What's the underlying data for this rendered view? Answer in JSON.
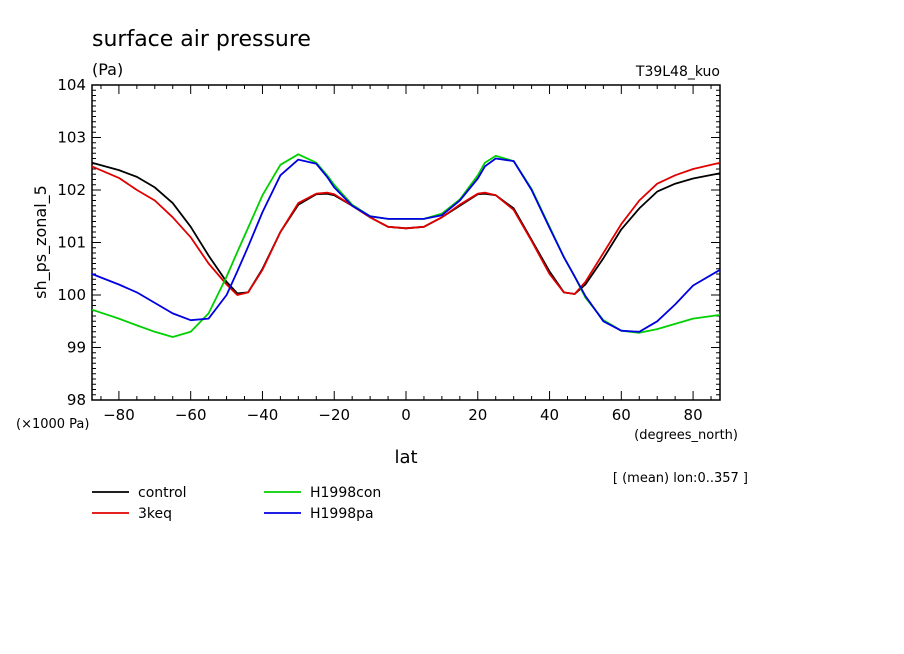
{
  "chart_data": {
    "type": "line",
    "title": "surface air pressure",
    "units": "(Pa)",
    "run_label": "T39L48_kuo",
    "ylabel": "sh_ps_zonal_5",
    "xlabel": "lat",
    "x_units": "(degrees_north)",
    "y_scale_note": "(×1000 Pa)",
    "averaging_note": "[ (mean) lon:0..357 ]",
    "xlim": [
      -87.5,
      87.5
    ],
    "ylim": [
      98,
      104
    ],
    "x_ticks": [
      -80,
      -60,
      -40,
      -20,
      0,
      20,
      40,
      60,
      80
    ],
    "x_tick_labels": [
      "−80",
      "−60",
      "−40",
      "−20",
      "0",
      "20",
      "40",
      "60",
      "80"
    ],
    "y_ticks": [
      98,
      99,
      100,
      101,
      102,
      103,
      104
    ],
    "y_tick_labels": [
      "98",
      "99",
      "100",
      "101",
      "102",
      "103",
      "104"
    ],
    "grid": false,
    "legend_position": "bottom-left",
    "x": [
      -87.5,
      -80,
      -75,
      -70,
      -65,
      -60,
      -55,
      -50,
      -47,
      -44,
      -40,
      -35,
      -30,
      -25,
      -22,
      -20,
      -15,
      -10,
      -5,
      0,
      5,
      10,
      15,
      20,
      22,
      25,
      30,
      35,
      40,
      44,
      47,
      50,
      55,
      60,
      65,
      70,
      75,
      80,
      87.5
    ],
    "series": [
      {
        "name": "control",
        "color": "#000000",
        "values": [
          102.52,
          102.38,
          102.25,
          102.05,
          101.75,
          101.3,
          100.75,
          100.25,
          100.03,
          100.05,
          100.5,
          101.2,
          101.72,
          101.92,
          101.93,
          101.9,
          101.7,
          101.48,
          101.3,
          101.27,
          101.3,
          101.48,
          101.7,
          101.92,
          101.93,
          101.9,
          101.65,
          101.05,
          100.45,
          100.05,
          100.02,
          100.2,
          100.7,
          101.25,
          101.65,
          101.97,
          102.12,
          102.22,
          102.32
        ]
      },
      {
        "name": "3keq",
        "color": "#e00000",
        "values": [
          102.45,
          102.23,
          102.0,
          101.8,
          101.48,
          101.1,
          100.6,
          100.2,
          100.0,
          100.05,
          100.48,
          101.2,
          101.75,
          101.93,
          101.95,
          101.92,
          101.7,
          101.48,
          101.3,
          101.27,
          101.3,
          101.48,
          101.72,
          101.93,
          101.95,
          101.9,
          101.62,
          101.03,
          100.4,
          100.05,
          100.02,
          100.25,
          100.8,
          101.35,
          101.8,
          102.12,
          102.28,
          102.4,
          102.52
        ]
      },
      {
        "name": "H1998con",
        "color": "#00d000",
        "values": [
          99.72,
          99.55,
          99.42,
          99.3,
          99.2,
          99.3,
          99.65,
          100.35,
          100.82,
          101.28,
          101.9,
          102.48,
          102.68,
          102.52,
          102.28,
          102.1,
          101.72,
          101.5,
          101.45,
          101.45,
          101.45,
          101.55,
          101.82,
          102.28,
          102.52,
          102.65,
          102.55,
          102.02,
          101.3,
          100.72,
          100.35,
          99.95,
          99.52,
          99.32,
          99.28,
          99.35,
          99.45,
          99.55,
          99.62
        ]
      },
      {
        "name": "H1998pa",
        "color": "#0000e0",
        "values": [
          100.4,
          100.2,
          100.05,
          99.85,
          99.65,
          99.52,
          99.55,
          100.0,
          100.45,
          100.92,
          101.58,
          102.28,
          102.58,
          102.5,
          102.25,
          102.05,
          101.7,
          101.5,
          101.45,
          101.45,
          101.45,
          101.52,
          101.8,
          102.22,
          102.45,
          102.6,
          102.55,
          102.0,
          101.28,
          100.72,
          100.35,
          99.98,
          99.5,
          99.32,
          99.3,
          99.5,
          99.82,
          100.18,
          100.48
        ]
      }
    ]
  }
}
